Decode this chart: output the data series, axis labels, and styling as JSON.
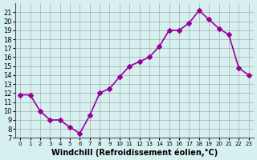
{
  "x": [
    0,
    1,
    2,
    3,
    4,
    5,
    6,
    7,
    8,
    9,
    10,
    11,
    12,
    13,
    14,
    15,
    16,
    17,
    18,
    19,
    20,
    21,
    22,
    23
  ],
  "y": [
    11.8,
    11.8,
    10.0,
    9.0,
    9.0,
    8.2,
    7.5,
    9.5,
    12.0,
    12.5,
    13.8,
    15.0,
    15.5,
    16.0,
    17.2,
    19.0,
    19.0,
    19.8,
    21.2,
    20.2,
    19.2,
    18.5,
    14.8,
    14.0
  ],
  "line_color": "#990099",
  "marker": "D",
  "marker_size": 3,
  "bg_color": "#d6f0f0",
  "grid_color": "#aaaaaa",
  "xlabel": "Windchill (Refroidissement éolien,°C)",
  "ylim": [
    7,
    22
  ],
  "xlim": [
    -0.5,
    23.5
  ],
  "yticks": [
    7,
    8,
    9,
    10,
    11,
    12,
    13,
    14,
    15,
    16,
    17,
    18,
    19,
    20,
    21
  ],
  "xticks": [
    0,
    1,
    2,
    3,
    4,
    5,
    6,
    7,
    8,
    9,
    10,
    11,
    12,
    13,
    14,
    15,
    16,
    17,
    18,
    19,
    20,
    21,
    22,
    23
  ],
  "tick_label_size": 6,
  "xlabel_size": 7,
  "line_width": 1.2
}
